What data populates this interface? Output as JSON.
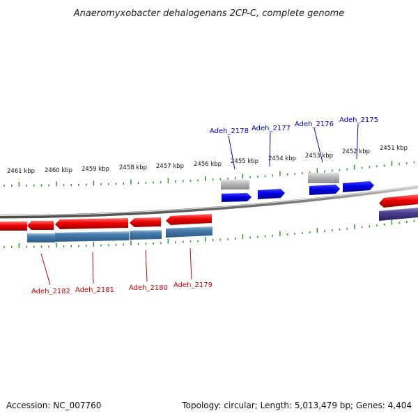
{
  "title": "Anaeromyxobacter dehalogenans 2CP-C, complete genome",
  "footer": {
    "accession": "Accession: NC_007760",
    "summary": "Topology: circular; Length: 5,013,479 bp; Genes: 4,404"
  },
  "colors": {
    "forward_gene": "#e8000b",
    "reverse_gene": "#0000e0",
    "cds_box": "#4a7fb0",
    "rna_box": "#b4b4b4",
    "dark_box": "#4a3c8c",
    "tick": "#2f8f2f",
    "backbone": "#808080",
    "label_forward": "#0000cc",
    "label_reverse": "#cc0000"
  },
  "kbp_labels": [
    "2461 kbp",
    "2460 kbp",
    "2459 kbp",
    "2458 kbp",
    "2457 kbp",
    "2456 kbp",
    "2455 kbp",
    "2454 kbp",
    "2453 kbp",
    "2452 kbp",
    "2451 kbp"
  ],
  "gene_labels_top": [
    "Adeh_2178",
    "Adeh_2177",
    "Adeh_2176",
    "Adeh_2175"
  ],
  "gene_labels_bottom": [
    "Adeh_2182",
    "Adeh_2181",
    "Adeh_2180",
    "Adeh_2179"
  ]
}
